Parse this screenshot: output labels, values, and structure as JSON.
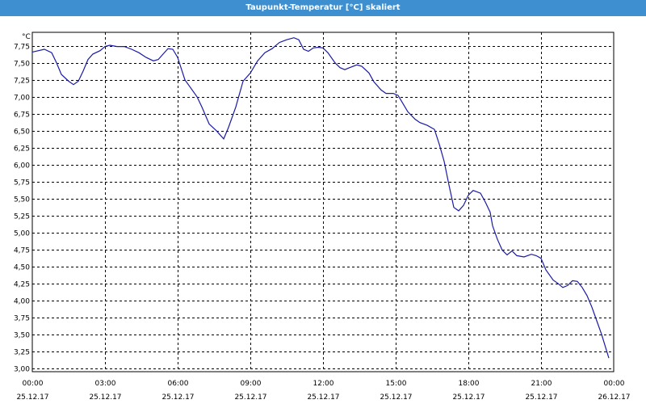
{
  "window": {
    "title": "Taupunkt-Temperatur [°C] skaliert"
  },
  "colors": {
    "title_bar": "#3e8fcf",
    "line": "#1a1aa6",
    "grid": "#000000"
  },
  "chart_data": {
    "type": "line",
    "title": "Taupunkt-Temperatur [°C] skaliert",
    "ylabel": "°C",
    "ylim": [
      2.95,
      7.95
    ],
    "yticks": [
      3.0,
      3.25,
      3.5,
      3.75,
      4.0,
      4.25,
      4.5,
      4.75,
      5.0,
      5.25,
      5.5,
      5.75,
      6.0,
      6.25,
      6.5,
      6.75,
      7.0,
      7.25,
      7.5,
      7.75
    ],
    "ytick_labels": [
      "3,00",
      "3,25",
      "3,50",
      "3,75",
      "4,00",
      "4,25",
      "4,50",
      "4,75",
      "5,00",
      "5,25",
      "5,50",
      "5,75",
      "6,00",
      "6,25",
      "6,50",
      "6,75",
      "7,00",
      "7,25",
      "7,50",
      "7,75"
    ],
    "xlim": [
      0,
      24
    ],
    "xticks": [
      0,
      3,
      6,
      9,
      12,
      15,
      18,
      21,
      24
    ],
    "xtick_labels": [
      {
        "time": "00:00",
        "date": "25.12.17"
      },
      {
        "time": "03:00",
        "date": "25.12.17"
      },
      {
        "time": "06:00",
        "date": "25.12.17"
      },
      {
        "time": "09:00",
        "date": "25.12.17"
      },
      {
        "time": "12:00",
        "date": "25.12.17"
      },
      {
        "time": "15:00",
        "date": "25.12.17"
      },
      {
        "time": "18:00",
        "date": "25.12.17"
      },
      {
        "time": "21:00",
        "date": "25.12.17"
      },
      {
        "time": "00:00",
        "date": "26.12.17"
      }
    ],
    "grid": true,
    "series": [
      {
        "x": [
          0.0,
          0.5,
          0.8,
          1.0,
          1.2,
          1.5,
          1.7,
          1.9,
          2.1,
          2.3,
          2.5,
          2.8,
          3.0,
          3.2,
          3.5,
          3.8,
          4.1,
          4.4,
          4.7,
          5.0,
          5.2,
          5.4,
          5.6,
          5.8,
          6.0,
          6.3,
          6.5,
          6.8,
          7.0,
          7.3,
          7.6,
          7.9,
          8.1,
          8.4,
          8.7,
          9.0,
          9.3,
          9.6,
          9.9,
          10.2,
          10.5,
          10.8,
          11.0,
          11.2,
          11.4,
          11.6,
          11.8,
          12.0,
          12.2,
          12.5,
          12.7,
          12.9,
          13.1,
          13.4,
          13.6,
          13.9,
          14.1,
          14.4,
          14.6,
          14.9,
          15.1,
          15.3,
          15.5,
          15.8,
          16.0,
          16.3,
          16.6,
          16.8,
          17.0,
          17.2,
          17.4,
          17.6,
          17.8,
          18.0,
          18.2,
          18.5,
          18.7,
          18.9,
          19.0,
          19.2,
          19.4,
          19.6,
          19.8,
          20.0,
          20.3,
          20.6,
          20.8,
          21.0,
          21.2,
          21.5,
          21.7,
          21.9,
          22.1,
          22.3,
          22.5,
          22.7,
          22.9,
          23.1,
          23.3,
          23.5,
          23.8
        ],
        "y": [
          7.66,
          7.7,
          7.65,
          7.5,
          7.33,
          7.23,
          7.18,
          7.23,
          7.38,
          7.55,
          7.63,
          7.68,
          7.74,
          7.76,
          7.74,
          7.74,
          7.7,
          7.65,
          7.58,
          7.53,
          7.55,
          7.63,
          7.71,
          7.7,
          7.58,
          7.25,
          7.15,
          7.0,
          6.85,
          6.6,
          6.5,
          6.38,
          6.55,
          6.85,
          7.23,
          7.35,
          7.53,
          7.65,
          7.71,
          7.8,
          7.84,
          7.87,
          7.84,
          7.7,
          7.67,
          7.72,
          7.73,
          7.72,
          7.65,
          7.5,
          7.43,
          7.4,
          7.43,
          7.47,
          7.45,
          7.35,
          7.22,
          7.1,
          7.05,
          7.05,
          7.02,
          6.9,
          6.78,
          6.67,
          6.62,
          6.58,
          6.52,
          6.3,
          6.05,
          5.7,
          5.37,
          5.32,
          5.4,
          5.55,
          5.62,
          5.58,
          5.45,
          5.3,
          5.1,
          4.9,
          4.74,
          4.67,
          4.73,
          4.66,
          4.64,
          4.68,
          4.66,
          4.62,
          4.45,
          4.3,
          4.25,
          4.19,
          4.22,
          4.29,
          4.28,
          4.19,
          4.07,
          3.9,
          3.7,
          3.5,
          3.15
        ]
      }
    ]
  }
}
